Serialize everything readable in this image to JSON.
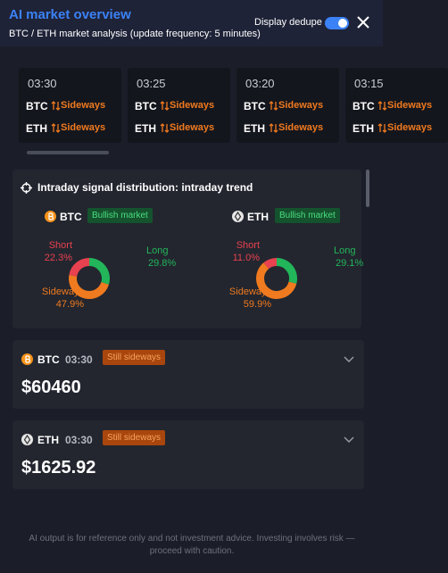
{
  "header": {
    "title": "AI market overview",
    "subtitle": "BTC / ETH market analysis (update frequency: 5 minutes)",
    "toggle_label": "Display dedupe"
  },
  "timeline": [
    {
      "time": "03:30",
      "rows": [
        {
          "asset": "BTC",
          "signal": "Sideways"
        },
        {
          "asset": "ETH",
          "signal": "Sideways"
        }
      ]
    },
    {
      "time": "03:25",
      "rows": [
        {
          "asset": "BTC",
          "signal": "Sideways"
        },
        {
          "asset": "ETH",
          "signal": "Sideways"
        }
      ]
    },
    {
      "time": "03:20",
      "rows": [
        {
          "asset": "BTC",
          "signal": "Sideways"
        },
        {
          "asset": "ETH",
          "signal": "Sideways"
        }
      ]
    },
    {
      "time": "03:15",
      "rows": [
        {
          "asset": "BTC",
          "signal": "Sideways"
        },
        {
          "asset": "ETH",
          "signal": "Sideways"
        }
      ]
    }
  ],
  "distribution": {
    "title": "Intraday signal distribution: intraday trend",
    "charts": [
      {
        "type": "pie",
        "asset": "BTC",
        "badge": "Bullish market",
        "categories": [
          "Long",
          "Sideways",
          "Short"
        ],
        "values": [
          29.8,
          47.9,
          22.3
        ],
        "value_labels": [
          "29.8%",
          "47.9%",
          "22.3%"
        ],
        "colors": [
          "#22b55a",
          "#f07a1f",
          "#e8414f"
        ]
      },
      {
        "type": "pie",
        "asset": "ETH",
        "badge": "Bullish market",
        "categories": [
          "Long",
          "Sideways",
          "Short"
        ],
        "values": [
          29.1,
          59.9,
          11.0
        ],
        "value_labels": [
          "29.1%",
          "59.9%",
          "11.0%"
        ],
        "colors": [
          "#22b55a",
          "#f07a1f",
          "#e8414f"
        ]
      }
    ]
  },
  "quotes": [
    {
      "asset": "BTC",
      "time": "03:30",
      "status": "Still sideways",
      "price": "$60460"
    },
    {
      "asset": "ETH",
      "time": "03:30",
      "status": "Still sideways",
      "price": "$1625.92"
    }
  ],
  "footer": "AI output is for reference only and not investment advice. Investing involves risk — proceed with caution."
}
